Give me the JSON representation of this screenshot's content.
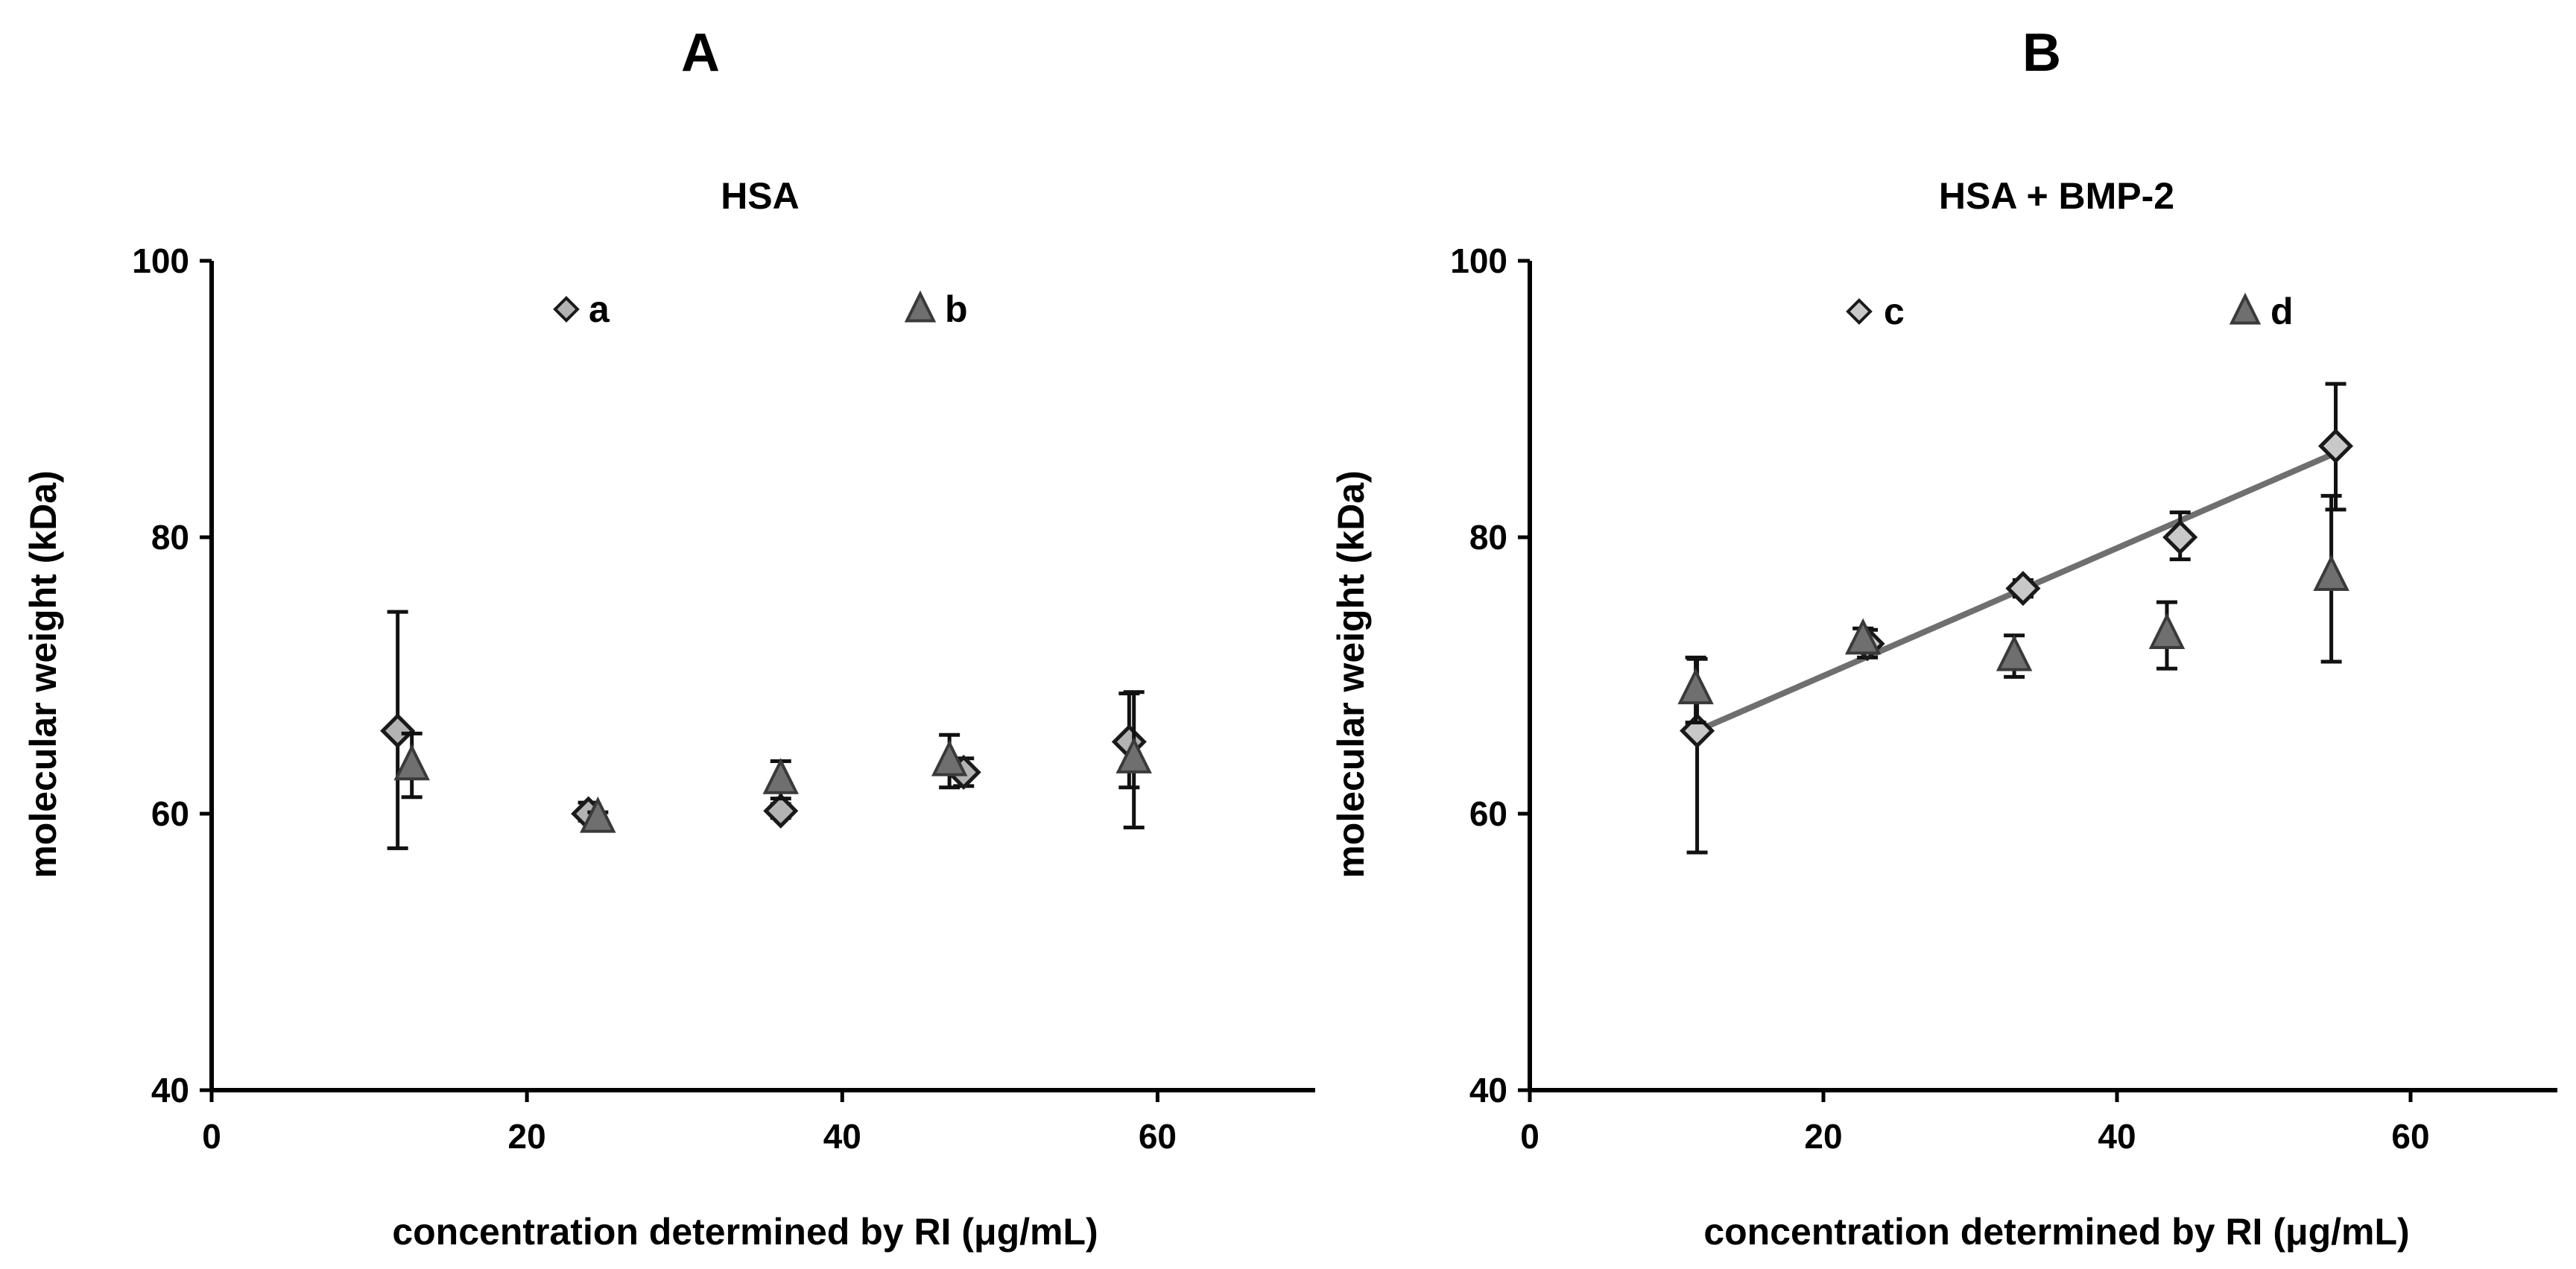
{
  "chart_data": [
    {
      "type": "scatter",
      "panel": "A",
      "title": "HSA",
      "xlabel": "concentration determined by RI (μg/mL)",
      "ylabel": "molecular weight (kDa)",
      "xlim": [
        0,
        70
      ],
      "ylim": [
        40,
        100
      ],
      "xticks": [
        0,
        20,
        40,
        60
      ],
      "yticks": [
        40,
        60,
        80,
        100
      ],
      "series": [
        {
          "name": "a",
          "marker": "diamond",
          "color": "#b3b3b3",
          "points": [
            {
              "x": 11.8,
              "y": 66.0,
              "err_low": 8.5,
              "err_high": 8.6
            },
            {
              "x": 23.9,
              "y": 60.0,
              "err_low": 0.5,
              "err_high": 0.8
            },
            {
              "x": 36.1,
              "y": 60.2,
              "err_low": 0.5,
              "err_high": 0.5
            },
            {
              "x": 47.7,
              "y": 63.0,
              "err_low": 1.0,
              "err_high": 1.0
            },
            {
              "x": 58.2,
              "y": 65.2,
              "err_low": 3.3,
              "err_high": 3.5
            }
          ]
        },
        {
          "name": "b",
          "marker": "triangle",
          "color": "#6f6f6f",
          "points": [
            {
              "x": 12.7,
              "y": 63.5,
              "err_low": 2.3,
              "err_high": 2.3
            },
            {
              "x": 24.5,
              "y": 59.7,
              "err_low": 0.4,
              "err_high": 0.4
            },
            {
              "x": 36.1,
              "y": 62.5,
              "err_low": 1.4,
              "err_high": 1.3
            },
            {
              "x": 46.8,
              "y": 63.8,
              "err_low": 1.9,
              "err_high": 1.9
            },
            {
              "x": 58.5,
              "y": 64.0,
              "err_low": 5.0,
              "err_high": 4.8
            }
          ]
        }
      ]
    },
    {
      "type": "scatter",
      "panel": "B",
      "title": "HSA + BMP-2",
      "xlabel": "concentration determined by RI (μg/mL)",
      "ylabel": "molecular weight (kDa)",
      "xlim": [
        0,
        70
      ],
      "ylim": [
        40,
        100
      ],
      "xticks": [
        0,
        20,
        40,
        60
      ],
      "yticks": [
        40,
        60,
        80,
        100
      ],
      "series": [
        {
          "name": "c",
          "marker": "diamond",
          "color": "#c8c8c8",
          "points": [
            {
              "x": 11.4,
              "y": 66.0,
              "err_low": 8.8,
              "err_high": 5.2
            },
            {
              "x": 23.0,
              "y": 72.3,
              "err_low": 1.0,
              "err_high": 1.0
            },
            {
              "x": 33.6,
              "y": 76.3,
              "err_low": 0.6,
              "err_high": 0.6
            },
            {
              "x": 44.3,
              "y": 80.0,
              "err_low": 1.6,
              "err_high": 1.8
            },
            {
              "x": 54.9,
              "y": 86.6,
              "err_low": 4.6,
              "err_high": 4.5
            }
          ]
        },
        {
          "name": "d",
          "marker": "triangle",
          "color": "#6f6f6f",
          "points": [
            {
              "x": 11.3,
              "y": 69.0,
              "err_low": 2.4,
              "err_high": 2.3
            },
            {
              "x": 22.7,
              "y": 72.6,
              "err_low": 0.8,
              "err_high": 0.8
            },
            {
              "x": 33.0,
              "y": 71.4,
              "err_low": 1.5,
              "err_high": 1.5
            },
            {
              "x": 43.4,
              "y": 73.0,
              "err_low": 2.5,
              "err_high": 2.3
            },
            {
              "x": 54.6,
              "y": 77.2,
              "err_low": 6.2,
              "err_high": 5.8
            }
          ]
        }
      ],
      "trendline": {
        "x": [
          11.4,
          54.9
        ],
        "y": [
          66.0,
          86.1
        ],
        "color": "#6f6f6f"
      }
    }
  ]
}
